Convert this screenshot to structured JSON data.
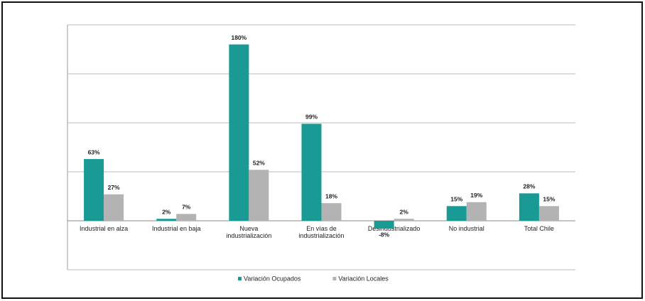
{
  "chart_data": {
    "type": "bar",
    "categories": [
      "Industrial en alza",
      "Industrial en baja",
      "Nueva\nindustrialización",
      "En vías de\nindustrialización",
      "Desindustrializado",
      "No industrial",
      "Total Chile"
    ],
    "series": [
      {
        "name": "Variación Ocupados",
        "color": "#1a9a94",
        "values": [
          63,
          2,
          180,
          99,
          -8,
          15,
          28
        ],
        "value_labels": [
          "63%",
          "2%",
          "180%",
          "99%",
          "-8%",
          "15%",
          "28%"
        ]
      },
      {
        "name": "Variación Locales",
        "color": "#b3b3b3",
        "values": [
          27,
          7,
          52,
          18,
          2,
          19,
          15
        ],
        "value_labels": [
          "27%",
          "7%",
          "52%",
          "18%",
          "2%",
          "19%",
          "15%"
        ]
      }
    ],
    "ylim": [
      -50,
      200
    ],
    "yticks": [
      -50,
      0,
      50,
      100,
      150,
      200
    ],
    "grid": true,
    "legend": "bottom"
  }
}
